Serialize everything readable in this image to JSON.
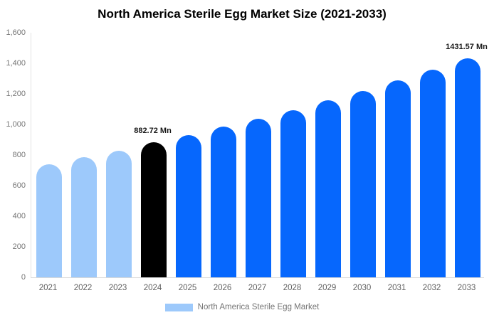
{
  "chart_data": {
    "type": "bar",
    "title": "North America Sterile Egg Market Size (2021-2033)",
    "xlabel": "",
    "ylabel": "",
    "unit": "Mn",
    "categories": [
      "2021",
      "2022",
      "2023",
      "2024",
      "2025",
      "2026",
      "2027",
      "2028",
      "2029",
      "2030",
      "2031",
      "2032",
      "2033"
    ],
    "values": [
      740,
      788,
      830,
      882.72,
      930,
      984,
      1038,
      1095,
      1156,
      1221,
      1289,
      1359,
      1431.57
    ],
    "bar_colors": [
      "#9dc9fb",
      "#9dc9fb",
      "#9dc9fb",
      "#000000",
      "#0667fd",
      "#0667fd",
      "#0667fd",
      "#0667fd",
      "#0667fd",
      "#0667fd",
      "#0667fd",
      "#0667fd",
      "#0667fd"
    ],
    "ylim": [
      0,
      1600
    ],
    "yticks": [
      {
        "value": 0,
        "label": "0"
      },
      {
        "value": 200,
        "label": "200"
      },
      {
        "value": 400,
        "label": "400"
      },
      {
        "value": 600,
        "label": "600"
      },
      {
        "value": 800,
        "label": "800"
      },
      {
        "value": 1000,
        "label": "1,000"
      },
      {
        "value": 1200,
        "label": "1,200"
      },
      {
        "value": 1400,
        "label": "1,400"
      },
      {
        "value": 1600,
        "label": "1,600"
      }
    ],
    "annotations": [
      {
        "category": "2024",
        "index": 3,
        "text": "882.72 Mn"
      },
      {
        "category": "2033",
        "index": 12,
        "text": "1431.57 Mn"
      }
    ],
    "grid": false,
    "legend_position": "bottom",
    "legend": [
      {
        "label": "North America Sterile Egg Market",
        "swatch_color": "#9dc9fb"
      }
    ]
  }
}
